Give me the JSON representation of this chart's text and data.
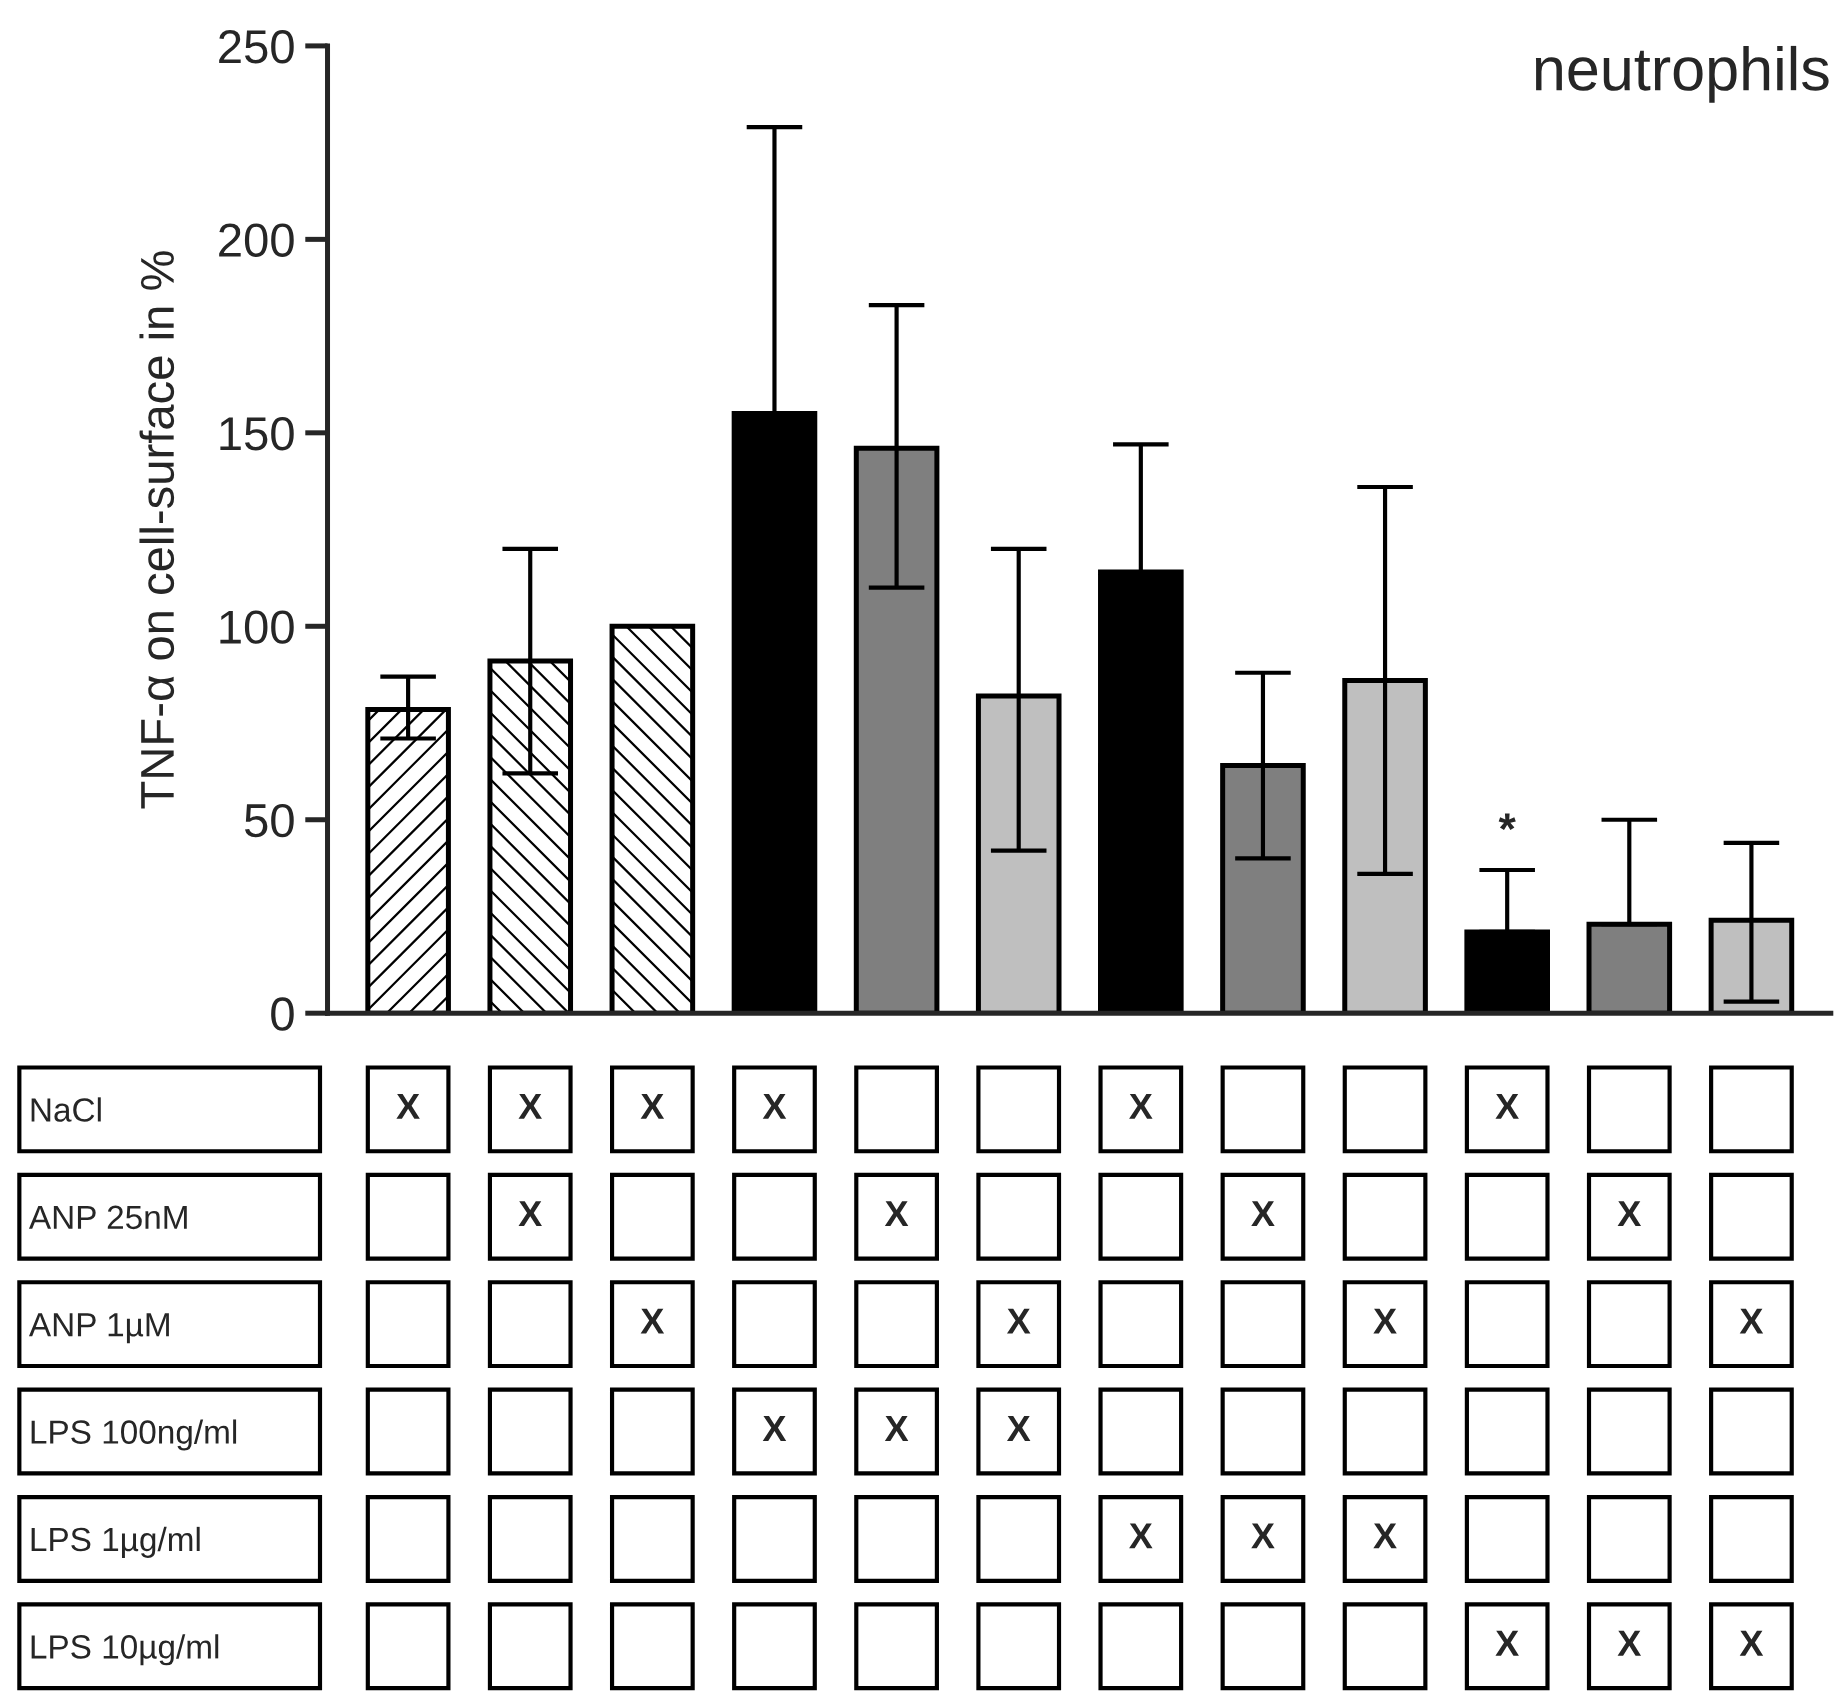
{
  "chart_data": [
    {
      "type": "bar",
      "title": "neutrophils",
      "ylabel": "TNF-α on cell-surface in %",
      "categories": [
        null,
        null,
        null,
        null,
        null,
        null,
        null,
        null,
        null,
        null,
        null,
        null
      ],
      "values": [
        78.5,
        91,
        100,
        155,
        146,
        82,
        114,
        64,
        86,
        21,
        23,
        24
      ],
      "colors": [
        "#ffffff",
        "#ffffff",
        "#ffffff",
        "#000000",
        "#7f7f7f",
        "#bfbfbf",
        "#000000",
        "#7f7f7f",
        "#bfbfbf",
        "#000000",
        "#7f7f7f",
        "#bfbfbf"
      ],
      "errors": [
        [
          71,
          87
        ],
        [
          62,
          120
        ],
        null,
        [
          155,
          229
        ],
        [
          110,
          183
        ],
        [
          42,
          120
        ],
        [
          114,
          147
        ],
        [
          40,
          88
        ],
        [
          36,
          136
        ],
        [
          21,
          37
        ],
        [
          23,
          50
        ],
        [
          3,
          44
        ]
      ],
      "value_labels": [
        null,
        null,
        null,
        null,
        null,
        null,
        null,
        null,
        null,
        "*",
        null,
        null
      ],
      "ylim": [
        0,
        250
      ],
      "yticks": [
        0,
        50,
        100,
        150,
        200,
        250
      ],
      "tick_labels": "y"
    },
    {
      "type": "heatmap",
      "categories": [
        null,
        null,
        null,
        null,
        null,
        null,
        null,
        null,
        null,
        null,
        null,
        null
      ],
      "y_categories": [
        "NaCl",
        "ANP 25nM",
        "ANP 1µM",
        "LPS 100ng/ml",
        "LPS 1µg/ml",
        "LPS 10µg/ml"
      ],
      "cells": [
        [
          null,
          null,
          null,
          null,
          null,
          null,
          null,
          null,
          null,
          null,
          null,
          null
        ],
        [
          null,
          null,
          null,
          null,
          null,
          null,
          null,
          null,
          null,
          null,
          null,
          null
        ],
        [
          null,
          null,
          null,
          null,
          null,
          null,
          null,
          null,
          null,
          null,
          null,
          null
        ],
        [
          null,
          null,
          null,
          null,
          null,
          null,
          null,
          null,
          null,
          null,
          null,
          null
        ],
        [
          null,
          null,
          null,
          null,
          null,
          null,
          null,
          null,
          null,
          null,
          null,
          null
        ],
        [
          null,
          null,
          null,
          null,
          null,
          null,
          null,
          null,
          null,
          null,
          null,
          null
        ]
      ],
      "cell_labels": [
        [
          "X",
          "X",
          "X",
          "X",
          null,
          null,
          "X",
          null,
          null,
          "X",
          null,
          null
        ],
        [
          null,
          "X",
          null,
          null,
          "X",
          null,
          null,
          "X",
          null,
          null,
          "X",
          null
        ],
        [
          null,
          null,
          "X",
          null,
          null,
          "X",
          null,
          null,
          "X",
          null,
          null,
          "X"
        ],
        [
          null,
          null,
          null,
          "X",
          "X",
          "X",
          null,
          null,
          null,
          null,
          null,
          null
        ],
        [
          null,
          null,
          null,
          null,
          null,
          null,
          "X",
          "X",
          "X",
          null,
          null,
          null
        ],
        [
          null,
          null,
          null,
          null,
          null,
          null,
          null,
          null,
          null,
          "X",
          "X",
          "X"
        ]
      ],
      "tick_labels": "y"
    }
  ]
}
